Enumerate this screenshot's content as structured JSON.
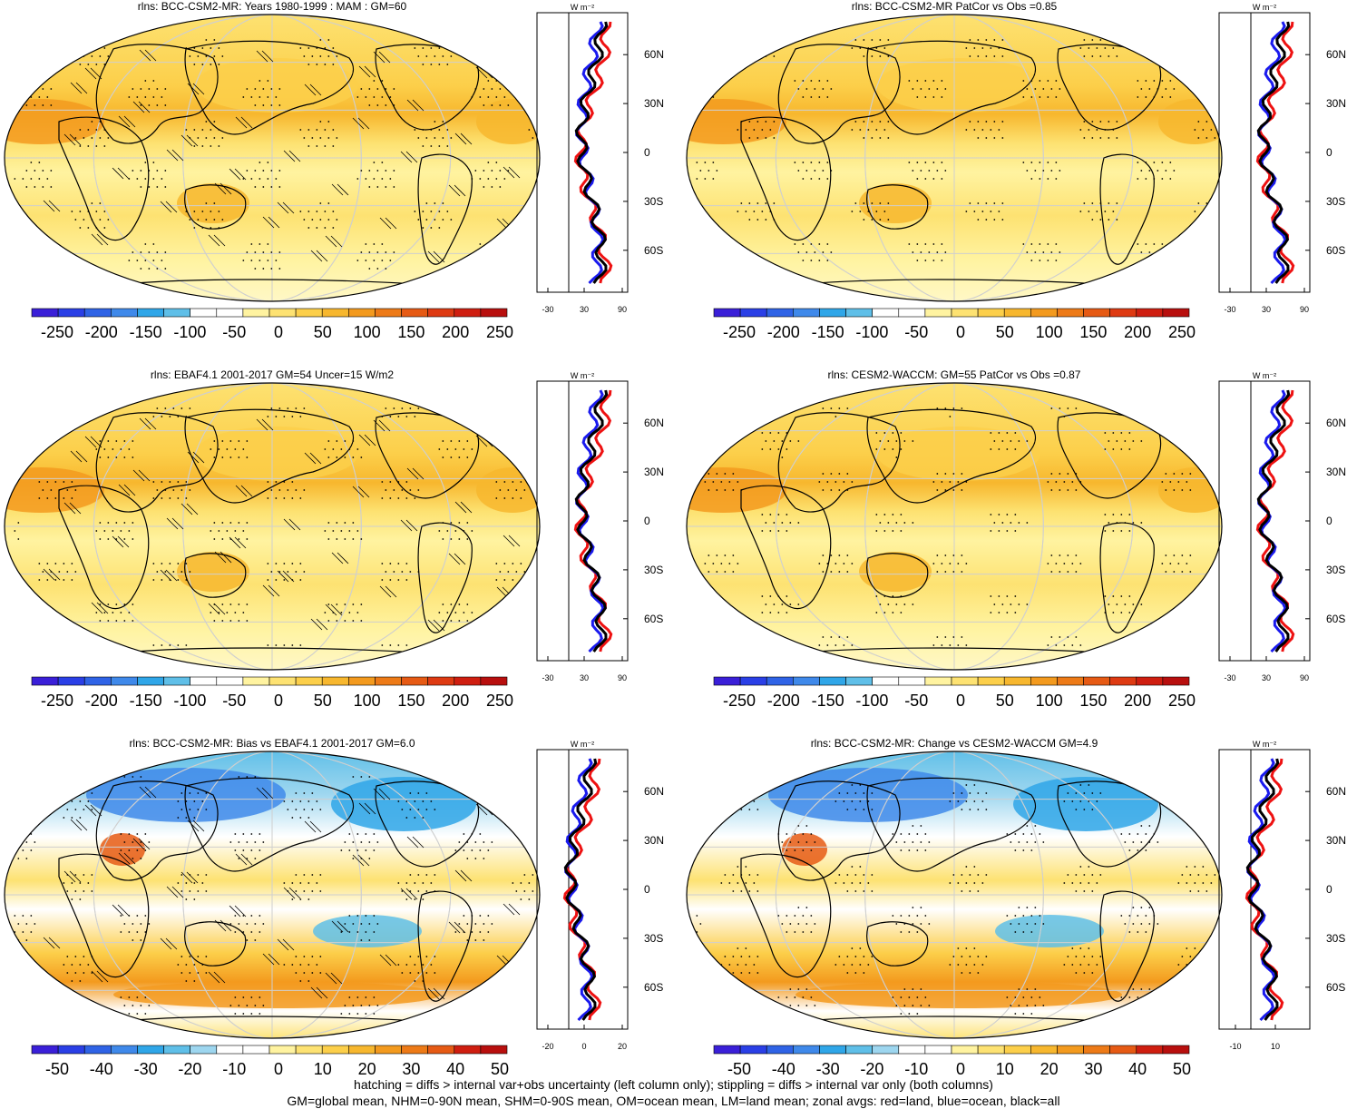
{
  "panels": [
    {
      "title": "rlns: BCC-CSM2-MR: Years 1980-1999 : MAM : GM=60",
      "scale": "abs",
      "hatch": true,
      "colorbar_labels": [
        "-250",
        "-200",
        "-150",
        "-100",
        "-50",
        "0",
        "50",
        "100",
        "150",
        "200",
        "250"
      ],
      "zonal_ticks": [
        "-30",
        "30",
        "90"
      ]
    },
    {
      "title": "rlns: BCC-CSM2-MR PatCor vs Obs =0.85",
      "scale": "abs",
      "hatch": false,
      "colorbar_labels": [
        "-250",
        "-200",
        "-150",
        "-100",
        "-50",
        "0",
        "50",
        "100",
        "150",
        "200",
        "250"
      ],
      "zonal_ticks": [
        "-30",
        "30",
        "90"
      ]
    },
    {
      "title": "rlns: EBAF4.1 2001-2017 GM=54 Uncer=15 W/m2",
      "scale": "abs",
      "hatch": true,
      "colorbar_labels": [
        "-250",
        "-200",
        "-150",
        "-100",
        "-50",
        "0",
        "50",
        "100",
        "150",
        "200",
        "250"
      ],
      "zonal_ticks": [
        "-30",
        "30",
        "90"
      ]
    },
    {
      "title": "rlns: CESM2-WACCM: GM=55 PatCor vs Obs =0.87",
      "scale": "abs",
      "hatch": false,
      "colorbar_labels": [
        "-250",
        "-200",
        "-150",
        "-100",
        "-50",
        "0",
        "50",
        "100",
        "150",
        "200",
        "250"
      ],
      "zonal_ticks": [
        "-30",
        "30",
        "90"
      ]
    },
    {
      "title": "rlns: BCC-CSM2-MR: Bias vs EBAF4.1 2001-2017 GM=6.0",
      "scale": "diff",
      "hatch": true,
      "colorbar_labels": [
        "-50",
        "-40",
        "-30",
        "-20",
        "-10",
        "0",
        "10",
        "20",
        "30",
        "40",
        "50"
      ],
      "zonal_ticks": [
        "-20",
        "0",
        "20"
      ]
    },
    {
      "title": "rlns: BCC-CSM2-MR: Change vs CESM2-WACCM GM=4.9",
      "scale": "diff",
      "hatch": false,
      "colorbar_labels": [
        "-50",
        "-40",
        "-30",
        "-20",
        "-10",
        "0",
        "10",
        "20",
        "30",
        "40",
        "50"
      ],
      "zonal_ticks": [
        "-10",
        "10"
      ]
    }
  ],
  "lat_labels": [
    "60N",
    "30N",
    "0",
    "30S",
    "60S"
  ],
  "units": "W m⁻²",
  "colors": {
    "abs": [
      "#3a1fd8",
      "#2a3fe6",
      "#2f63e6",
      "#3f89ea",
      "#2fa6e8",
      "#5fbfe8",
      "#ffffff",
      "#ffffff",
      "#fff3a0",
      "#fde272",
      "#fccf4a",
      "#f7b72e",
      "#f39a1e",
      "#ed7a17",
      "#e65a14",
      "#de3a12",
      "#cf1e10",
      "#b80f0e"
    ],
    "diff": [
      "#3a1fd8",
      "#2a3fe6",
      "#2f63e6",
      "#3f89ea",
      "#2fa6e8",
      "#5fbfe8",
      "#9dd6ef",
      "#ffffff",
      "#ffffff",
      "#fff3a0",
      "#fde272",
      "#fccf4a",
      "#f7b72e",
      "#f39a1e",
      "#ed7a17",
      "#e65a14",
      "#cf1e10",
      "#b80f0e"
    ],
    "land": "#ee1111",
    "ocean": "#1a1aee",
    "all": "#000000"
  },
  "footer": [
    "hatching = diffs > internal var+obs uncertainty (left column only); stippling = diffs > internal var only (both columns)",
    "GM=global mean, NHM=0-90N mean, SHM=0-90S mean, OM=ocean mean, LM=land mean; zonal avgs: red=land, blue=ocean, black=all"
  ]
}
